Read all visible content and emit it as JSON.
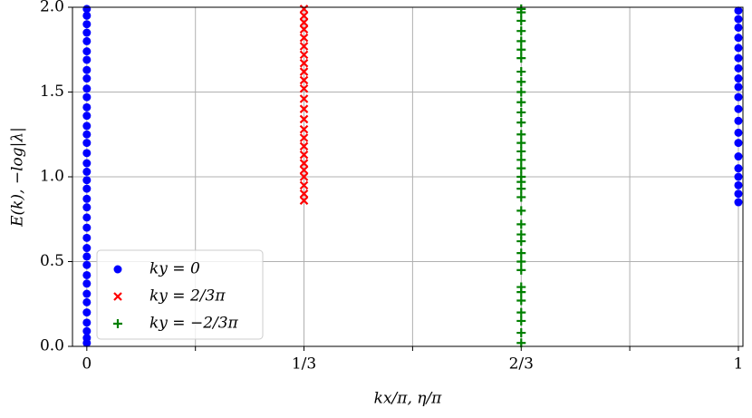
{
  "chart_data": {
    "type": "scatter",
    "xlabel": "kx/π, η/π",
    "ylabel": "E(k), −log|λ|",
    "xlim": [
      -0.022,
      1.007
    ],
    "ylim": [
      0,
      2
    ],
    "xticks": [
      0,
      {
        "value": 0.3333,
        "label": "1/3"
      },
      {
        "value": 0.6667,
        "label": "2/3"
      },
      1
    ],
    "xminor_ticks": [
      0.1667,
      0.5,
      0.8333
    ],
    "yticks": [
      {
        "value": 0,
        "label": "0.0"
      },
      {
        "value": 0.5,
        "label": "0.5"
      },
      {
        "value": 1,
        "label": "1.0"
      },
      {
        "value": 1.5,
        "label": "1.5"
      },
      {
        "value": 2,
        "label": "2.0"
      }
    ],
    "grid": true,
    "legend": "lower left",
    "series": [
      {
        "name": "ky = 0",
        "color": "#0000ff",
        "marker": "o",
        "x": [
          0,
          0,
          0,
          0,
          0,
          0,
          0,
          0,
          0,
          0,
          0,
          0,
          0,
          0,
          0,
          0,
          0,
          0,
          0,
          0,
          0,
          0,
          0,
          0,
          0,
          0,
          0,
          0,
          0,
          0,
          0,
          0,
          0,
          0,
          0,
          0,
          0,
          0,
          1,
          1,
          1,
          1,
          1,
          1,
          1,
          1,
          1,
          1,
          1,
          1,
          1,
          1,
          1,
          1,
          1,
          1,
          1,
          1
        ],
        "values": [
          0.02,
          0.05,
          0.09,
          0.14,
          0.2,
          0.26,
          0.31,
          0.37,
          0.42,
          0.48,
          0.53,
          0.58,
          0.64,
          0.7,
          0.76,
          0.82,
          0.87,
          0.93,
          0.98,
          1.03,
          1.08,
          1.14,
          1.2,
          1.25,
          1.3,
          1.36,
          1.41,
          1.47,
          1.52,
          1.58,
          1.63,
          1.69,
          1.74,
          1.8,
          1.85,
          1.9,
          1.95,
          1.99,
          0.85,
          0.9,
          0.95,
          1.0,
          1.05,
          1.12,
          1.2,
          1.26,
          1.33,
          1.4,
          1.47,
          1.53,
          1.58,
          1.64,
          1.7,
          1.76,
          1.82,
          1.88,
          1.93,
          1.98
        ]
      },
      {
        "name": "ky = 2/3π",
        "color": "#ff0000",
        "marker": "x",
        "x": [
          0.3333,
          0.3333,
          0.3333,
          0.3333,
          0.3333,
          0.3333,
          0.3333,
          0.3333,
          0.3333,
          0.3333,
          0.3333,
          0.3333,
          0.3333,
          0.3333,
          0.3333,
          0.3333,
          0.3333,
          0.3333,
          0.3333,
          0.3333,
          0.3333,
          0.3333,
          0.3333,
          0.3333
        ],
        "values": [
          0.86,
          0.9,
          0.95,
          1.0,
          1.04,
          1.08,
          1.13,
          1.18,
          1.23,
          1.28,
          1.34,
          1.4,
          1.46,
          1.52,
          1.57,
          1.62,
          1.67,
          1.72,
          1.77,
          1.82,
          1.87,
          1.91,
          1.95,
          1.99
        ]
      },
      {
        "name": "ky = −2/3π",
        "color": "#008000",
        "marker": "+",
        "x": [
          0.6667,
          0.6667,
          0.6667,
          0.6667,
          0.6667,
          0.6667,
          0.6667,
          0.6667,
          0.6667,
          0.6667,
          0.6667,
          0.6667,
          0.6667,
          0.6667,
          0.6667,
          0.6667,
          0.6667,
          0.6667,
          0.6667,
          0.6667,
          0.6667,
          0.6667,
          0.6667,
          0.6667,
          0.6667,
          0.6667,
          0.6667,
          0.6667,
          0.6667,
          0.6667,
          0.6667,
          0.6667,
          0.6667,
          0.6667,
          0.6667,
          0.6667
        ],
        "values": [
          0.02,
          0.08,
          0.15,
          0.2,
          0.27,
          0.32,
          0.35,
          0.45,
          0.5,
          0.55,
          0.62,
          0.66,
          0.72,
          0.8,
          0.88,
          0.93,
          0.97,
          1.0,
          1.05,
          1.1,
          1.15,
          1.2,
          1.25,
          1.32,
          1.38,
          1.44,
          1.5,
          1.56,
          1.62,
          1.7,
          1.75,
          1.8,
          1.86,
          1.92,
          1.97,
          1.99
        ]
      }
    ]
  }
}
